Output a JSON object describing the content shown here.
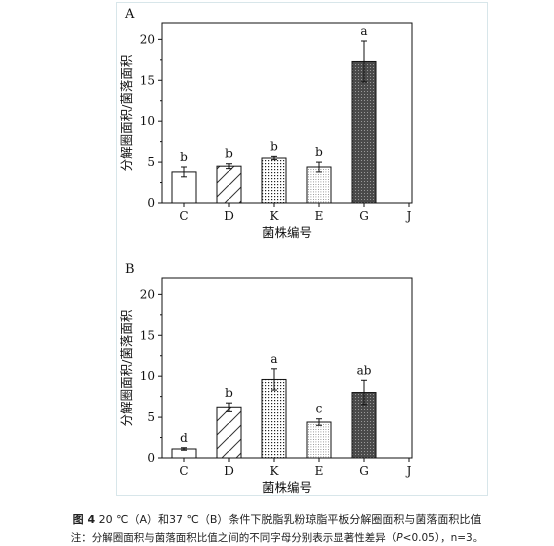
{
  "chart_data": [
    {
      "type": "bar",
      "panel": "A",
      "categories": [
        "C",
        "D",
        "K",
        "E",
        "G",
        "J"
      ],
      "values": [
        3.8,
        4.5,
        5.5,
        4.4,
        17.3,
        0
      ],
      "errors": [
        0.6,
        0.3,
        0.2,
        0.6,
        2.5,
        0
      ],
      "significance": [
        "b",
        "b",
        "b",
        "b",
        "a",
        ""
      ],
      "patterns": [
        "empty",
        "diag",
        "dots",
        "fine",
        "dark",
        "empty"
      ],
      "xlabel": "菌株编号",
      "ylabel": "分解圈面积/菌落面积",
      "ylim": [
        0,
        22
      ],
      "yticks": [
        0,
        5,
        10,
        15,
        20
      ],
      "grid": false
    },
    {
      "type": "bar",
      "panel": "B",
      "categories": [
        "C",
        "D",
        "K",
        "E",
        "G",
        "J"
      ],
      "values": [
        1.1,
        6.2,
        9.6,
        4.4,
        8.0,
        0
      ],
      "errors": [
        0.15,
        0.5,
        1.3,
        0.4,
        1.5,
        0
      ],
      "significance": [
        "d",
        "b",
        "a",
        "c",
        "ab",
        ""
      ],
      "patterns": [
        "empty",
        "diag",
        "dots",
        "fine",
        "dark",
        "empty"
      ],
      "xlabel": "菌株编号",
      "ylabel": "分解圈面积/菌落面积",
      "ylim": [
        0,
        22
      ],
      "yticks": [
        0,
        5,
        10,
        15,
        20
      ],
      "grid": false
    }
  ],
  "caption": {
    "fig_label": "图 4",
    "title": "20 ℃（A）和37 ℃（B）条件下脱脂乳粉琼脂平板分解圈面积与菌落面积比值",
    "note_prefix": "注：分解圈面积与菌落面积比值之间的不同字母分别表示显著性差异（",
    "note_p": "P",
    "note_suffix": "<0.05），n=3。"
  }
}
